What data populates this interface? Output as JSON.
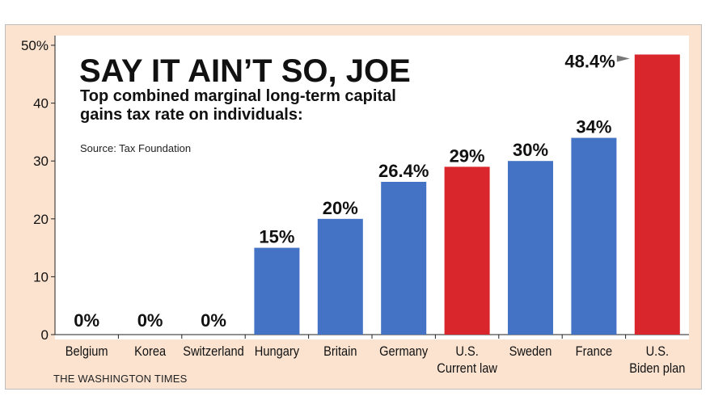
{
  "chart_data": {
    "type": "bar",
    "title": "SAY IT AIN’T SO, JOE",
    "subtitle": "Top combined marginal long-term capital gains tax rate on individuals:",
    "source": "Source: Tax Foundation",
    "credit": "THE WASHINGTON TIMES",
    "categories": [
      [
        "Belgium"
      ],
      [
        "Korea"
      ],
      [
        "Switzerland"
      ],
      [
        "Hungary"
      ],
      [
        "Britain"
      ],
      [
        "Germany"
      ],
      [
        "U.S.",
        "Current law"
      ],
      [
        "Sweden"
      ],
      [
        "France"
      ],
      [
        "U.S.",
        "Biden plan"
      ]
    ],
    "values": [
      0,
      0,
      0,
      15,
      20,
      26.4,
      29,
      30,
      34,
      48.4
    ],
    "value_labels": [
      "0%",
      "0%",
      "0%",
      "15%",
      "20%",
      "26.4%",
      "29%",
      "30%",
      "34%",
      "48.4%"
    ],
    "highlight": [
      false,
      false,
      false,
      false,
      false,
      false,
      true,
      false,
      false,
      true
    ],
    "ylim": [
      0,
      50
    ],
    "yticks": [
      0,
      10,
      20,
      30,
      40,
      50
    ],
    "ytick_labels": [
      "0",
      "10",
      "20",
      "30",
      "40",
      "50%"
    ],
    "colors": {
      "bar": "#4472c4",
      "highlight": "#d9262c",
      "background": "#fbe3d0",
      "plot": "#ffffff"
    }
  }
}
